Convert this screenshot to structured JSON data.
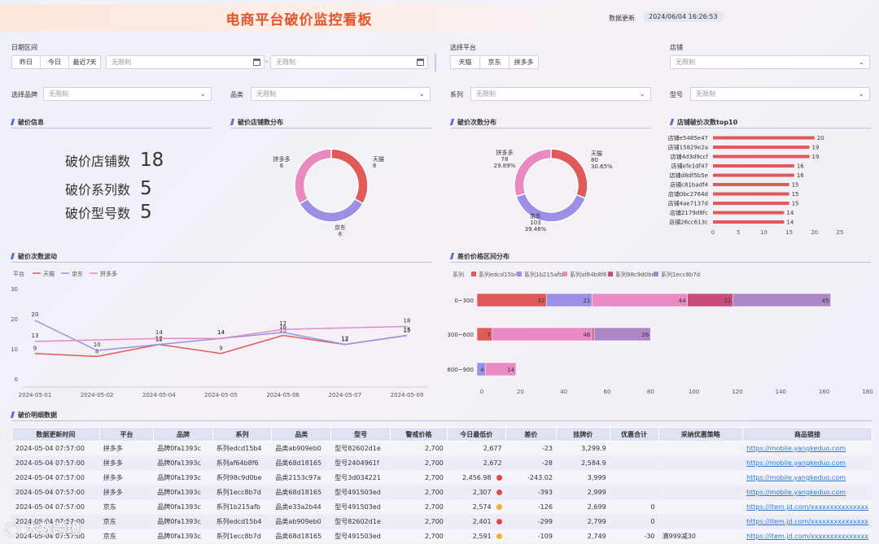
{
  "title": "电商平台破价监控看板",
  "update": {
    "label": "数据更新",
    "value": "2024/06/04 16:26:53"
  },
  "filters": {
    "date_label": "日期区间",
    "yesterday": "昨日",
    "today": "今日",
    "last7": "最近7天",
    "start_ph": "无限制",
    "sep": "-",
    "end_ph": "无限制",
    "platform_label": "选择平台",
    "platforms": [
      "天猫",
      "京东",
      "拼多多"
    ],
    "store_label": "店铺",
    "store_ph": "无限制",
    "brand_label": "选择品牌",
    "brand_ph": "无限制",
    "cat_label": "品类",
    "cat_ph": "无限制",
    "series_label": "系列",
    "series_ph": "无限制",
    "model_label": "型号",
    "model_ph": "无限制"
  },
  "sections": {
    "info": "破价信息",
    "store_dist": "破价店铺数分布",
    "count_dist": "破价次数分布",
    "top10": "店铺破价次数top10",
    "trend": "破价次数波动",
    "diff_dist": "差价价格区间分布",
    "detail": "破价明细数据"
  },
  "kpis": [
    {
      "label": "破价店铺数",
      "value": "18"
    },
    {
      "label": "破价系列数",
      "value": "5"
    },
    {
      "label": "破价型号数",
      "value": "5"
    }
  ],
  "colors": {
    "tmall": "#e05a5a",
    "jd": "#9b8fe6",
    "pdd": "#e88ac0",
    "s1": "#e05a5a",
    "s2": "#9b8fe6",
    "s3": "#ea8ac4",
    "s4": "#c84c7a",
    "s5": "#ad86c8"
  },
  "chart_data": [
    {
      "type": "pie",
      "title": "破价店铺数分布",
      "slices": [
        {
          "name": "天猫",
          "value": 6
        },
        {
          "name": "京东",
          "value": 6
        },
        {
          "name": "拼多多",
          "value": 6
        }
      ]
    },
    {
      "type": "pie",
      "title": "破价次数分布",
      "slices": [
        {
          "name": "天猫",
          "value": 80,
          "pct": "30.65%"
        },
        {
          "name": "京东",
          "value": 103,
          "pct": "39.46%"
        },
        {
          "name": "拼多多",
          "value": 78,
          "pct": "29.89%"
        }
      ]
    },
    {
      "type": "bar",
      "title": "店铺破价次数top10",
      "categories": [
        "店铺e5485e47",
        "店铺15829e2a",
        "店铺4d3d9ccf",
        "店铺efe1df47",
        "店铺d8df5b5e",
        "店铺c81badf4",
        "店铺0bc2764d",
        "店铺4ae7137d",
        "店铺2179d8fc",
        "店铺26cc613c"
      ],
      "values": [
        20,
        19,
        19,
        16,
        16,
        15,
        15,
        15,
        14,
        14
      ],
      "xticks": [
        "0",
        "5",
        "10",
        "15",
        "20",
        "25"
      ],
      "xlim": [
        0,
        25
      ]
    },
    {
      "type": "line",
      "title": "破价次数波动",
      "legend_title": "平台",
      "x": [
        "2024-05-01",
        "2024-05-02",
        "2024-05-04",
        "2024-05-05",
        "2024-05-06",
        "2024-05-07",
        "2024-05-09"
      ],
      "series": [
        {
          "name": "天猫",
          "values": [
            9,
            8,
            12,
            9,
            15,
            12,
            15
          ]
        },
        {
          "name": "京东",
          "values": [
            20,
            10,
            12,
            14,
            16,
            12,
            15
          ]
        },
        {
          "name": "拼多多",
          "values": [
            13,
            null,
            14,
            14,
            17,
            null,
            18
          ]
        }
      ],
      "yticks": [
        "0",
        "10",
        "20",
        "30"
      ],
      "ylim": [
        0,
        30
      ]
    },
    {
      "type": "bar",
      "title": "差价价格区间分布",
      "stacked": true,
      "horizontal": true,
      "legend_title": "系列",
      "categories": [
        "0~300",
        "300~600",
        "600~900"
      ],
      "series": [
        {
          "name": "系列edcd15b4",
          "values": [
            32,
            7,
            0
          ]
        },
        {
          "name": "系列1b215afb",
          "values": [
            21,
            0,
            4
          ]
        },
        {
          "name": "系列af64b8f6",
          "values": [
            44,
            46,
            14
          ]
        },
        {
          "name": "系列98c9d0be",
          "values": [
            21,
            1,
            0
          ]
        },
        {
          "name": "系列1ecc8b7d",
          "values": [
            45,
            26,
            0
          ]
        }
      ],
      "xticks": [
        "0",
        "20",
        "40",
        "60",
        "80",
        "100",
        "120",
        "140",
        "160",
        "180"
      ],
      "xlim": [
        0,
        180
      ]
    }
  ],
  "table": {
    "headers": [
      "数据更新时间",
      "平台",
      "品牌",
      "系列",
      "品类",
      "型号",
      "警戒价格",
      "今日最低价",
      "差价",
      "挂牌价",
      "优惠合计",
      "采纳优惠策略",
      "商品链接"
    ],
    "rows": [
      {
        "time": "2024-05-04 07:57:00",
        "plat": "拼多多",
        "brand": "品牌0fa1393c",
        "series": "系列edcd15b4",
        "cat": "品类ab909eb0",
        "model": "型号82602d1e",
        "alert": "2,700",
        "low": "2,677",
        "dot": "",
        "diff": "-23",
        "list": "3,299.9",
        "disc": "",
        "strat": "",
        "link": "https://mobile.yangkeduo.com"
      },
      {
        "time": "2024-05-04 07:57:00",
        "plat": "拼多多",
        "brand": "品牌0fa1393c",
        "series": "系列af64b8f6",
        "cat": "品类68d18165",
        "model": "型号2404961f",
        "alert": "2,700",
        "low": "2,672",
        "dot": "",
        "diff": "-28",
        "list": "2,584.9",
        "disc": "",
        "strat": "",
        "link": "https://mobile.yangkeduo.com"
      },
      {
        "time": "2024-05-04 07:57:00",
        "plat": "拼多多",
        "brand": "品牌0fa1393c",
        "series": "系列98c9d0be",
        "cat": "品类2153c97a",
        "model": "型号3d034221",
        "alert": "2,700",
        "low": "2,456.98",
        "dot": "#e04848",
        "diff": "-243.02",
        "list": "3,999",
        "disc": "",
        "strat": "",
        "link": "https://mobile.yangkeduo.com"
      },
      {
        "time": "2024-05-04 07:57:00",
        "plat": "拼多多",
        "brand": "品牌0fa1393c",
        "series": "系列1ecc8b7d",
        "cat": "品类68d18165",
        "model": "型号491503ed",
        "alert": "2,700",
        "low": "2,307",
        "dot": "#e04848",
        "diff": "-393",
        "list": "2,999",
        "disc": "",
        "strat": "",
        "link": "https://mobile.yangkeduo.com"
      },
      {
        "time": "2024-05-04 07:57:00",
        "plat": "京东",
        "brand": "品牌0fa1393c",
        "series": "系列1b215afb",
        "cat": "品类e33a2b44",
        "model": "型号491503ed",
        "alert": "2,700",
        "low": "2,574",
        "dot": "#f0b030",
        "diff": "-126",
        "list": "2,699",
        "disc": "0",
        "strat": "",
        "link": "https://item.jd.com/xxxxxxxxxxxxxxx"
      },
      {
        "time": "2024-05-04 07:57:00",
        "plat": "京东",
        "brand": "品牌0fa1393c",
        "series": "系列edcd15b4",
        "cat": "品类ab909eb0",
        "model": "型号82602d1e",
        "alert": "2,700",
        "low": "2,401",
        "dot": "#e04848",
        "diff": "-299",
        "list": "2,799",
        "disc": "0",
        "strat": "",
        "link": "https://item.jd.com/xxxxxxxxxxxxxxx"
      },
      {
        "time": "2024-05-04 07:57:00",
        "plat": "京东",
        "brand": "品牌0fa1393c",
        "series": "系列1ecc8b7d",
        "cat": "品类68d18165",
        "model": "型号491503ed",
        "alert": "2,700",
        "low": "2,591",
        "dot": "#f0b030",
        "diff": "-109",
        "list": "2,749",
        "disc": "-30",
        "strat": "满999减30",
        "link": "https://item.jd.com/xxxxxxxxxxxxxxx"
      }
    ]
  },
  "watermark": "大数跨境"
}
